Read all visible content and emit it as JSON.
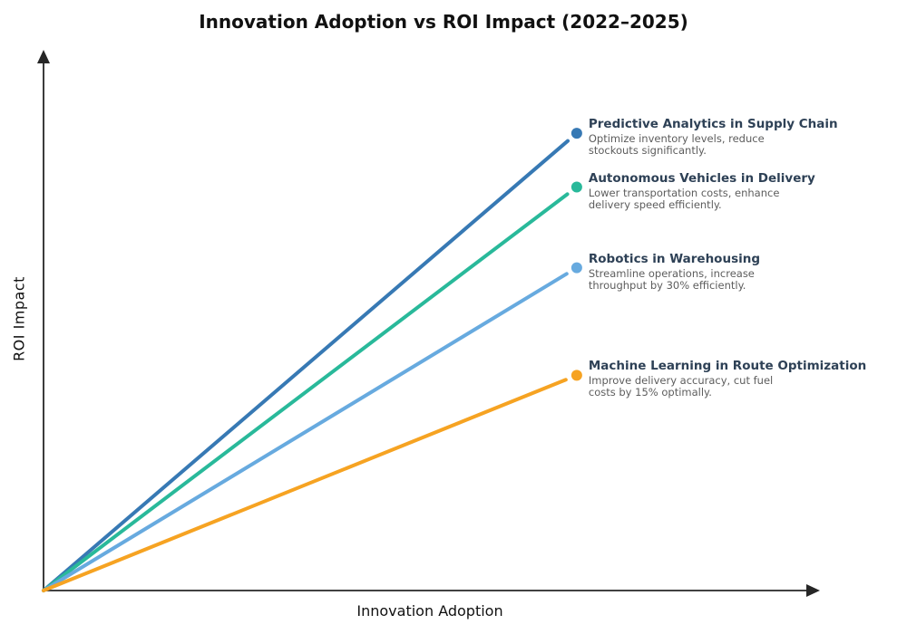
{
  "chart_data": {
    "type": "line",
    "title": "Innovation Adoption vs ROI Impact (2022–2025)",
    "xlabel": "Innovation Adoption",
    "ylabel": "ROI Impact",
    "xlim": [
      0,
      100
    ],
    "ylim": [
      0,
      100
    ],
    "grid": false,
    "ticks": "none",
    "legend": "none (inline annotations at line endpoints)",
    "axis_style": "arrowed x and y axes from origin",
    "axis_color": "#262626",
    "annotation_title_color": "#2e4156",
    "annotation_text_color": "#5d5d5d",
    "series": [
      {
        "name": "Predictive Analytics in Supply Chain",
        "annotation": "Optimize inventory levels, reduce\nstockouts significantly.",
        "color": "#3779b4",
        "x": [
          0,
          69
        ],
        "y": [
          0,
          85
        ]
      },
      {
        "name": "Autonomous Vehicles in Delivery",
        "annotation": "Lower transportation costs, enhance\ndelivery speed efficiently.",
        "color": "#29b99a",
        "x": [
          0,
          69
        ],
        "y": [
          0,
          75
        ]
      },
      {
        "name": "Robotics in Warehousing",
        "annotation": "Streamline operations, increase\nthroughput by 30% efficiently.",
        "color": "#67aadf",
        "x": [
          0,
          69
        ],
        "y": [
          0,
          60
        ]
      },
      {
        "name": "Machine Learning in Route Optimization",
        "annotation": "Improve delivery accuracy, cut fuel\ncosts by 15% optimally.",
        "color": "#f6a322",
        "x": [
          0,
          69
        ],
        "y": [
          0,
          40
        ]
      }
    ]
  }
}
